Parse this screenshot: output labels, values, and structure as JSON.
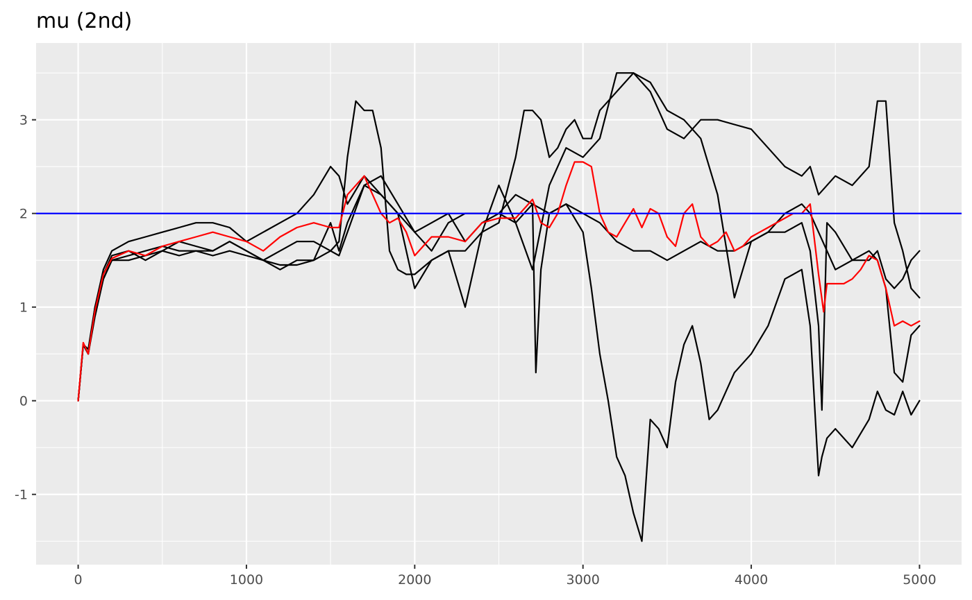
{
  "chart_data": {
    "type": "line",
    "title": "mu (2nd)",
    "xlabel": "",
    "ylabel": "",
    "xlim": [
      -250,
      5250
    ],
    "ylim": [
      -1.75,
      3.82
    ],
    "x_ticks": [
      0,
      1000,
      2000,
      3000,
      4000,
      5000
    ],
    "x_tick_labels": [
      "0",
      "1000",
      "2000",
      "3000",
      "4000",
      "5000"
    ],
    "y_ticks": [
      -1,
      0,
      1,
      2,
      3
    ],
    "y_tick_labels": [
      "-1",
      "0",
      "1",
      "2",
      "3"
    ],
    "grid": true,
    "legend": "none",
    "reference_line": {
      "y": 2,
      "color": "#0000ff"
    },
    "colors": {
      "chain": "#000000",
      "mean": "#ff0000",
      "reference": "#0000ff",
      "panel": "#ebebeb",
      "grid": "#ffffff"
    },
    "series": [
      {
        "color": "#000000",
        "x": [
          0,
          30,
          60,
          100,
          150,
          200,
          300,
          400,
          500,
          600,
          700,
          800,
          900,
          1000,
          1100,
          1200,
          1300,
          1400,
          1500,
          1550,
          1600,
          1650,
          1700,
          1750,
          1800,
          1850,
          1900,
          1950,
          2000,
          2100,
          2200,
          2300,
          2400,
          2500,
          2600,
          2650,
          2700,
          2750,
          2800,
          2850,
          2900,
          2950,
          3000,
          3050,
          3100,
          3200,
          3300,
          3400,
          3500,
          3600,
          3700,
          3800,
          3900,
          4000,
          4100,
          4200,
          4300,
          4350,
          4400,
          4450,
          4500,
          4600,
          4700,
          4750,
          4800,
          4850,
          4900,
          4950,
          5000
        ],
        "y": [
          0,
          0.6,
          0.5,
          1.0,
          1.3,
          1.5,
          1.55,
          1.6,
          1.65,
          1.6,
          1.6,
          1.55,
          1.6,
          1.55,
          1.5,
          1.45,
          1.45,
          1.5,
          1.6,
          1.7,
          2.6,
          3.2,
          3.1,
          3.1,
          2.7,
          1.6,
          1.4,
          1.35,
          1.35,
          1.5,
          1.6,
          1.6,
          1.8,
          1.9,
          2.6,
          3.1,
          3.1,
          3.0,
          2.6,
          2.7,
          2.9,
          3.0,
          2.8,
          2.8,
          3.1,
          3.3,
          3.5,
          3.4,
          3.1,
          3.0,
          2.8,
          2.2,
          1.1,
          1.7,
          1.8,
          2.0,
          2.1,
          2.0,
          1.8,
          1.6,
          1.4,
          1.5,
          1.5,
          1.6,
          1.3,
          1.2,
          1.3,
          1.5,
          1.6
        ]
      },
      {
        "color": "#000000",
        "x": [
          0,
          30,
          60,
          100,
          150,
          200,
          300,
          400,
          500,
          600,
          700,
          800,
          900,
          1000,
          1100,
          1200,
          1300,
          1400,
          1500,
          1550,
          1600,
          1700,
          1800,
          1900,
          2000,
          2100,
          2200,
          2300,
          2400,
          2500,
          2600,
          2700,
          2800,
          2900,
          3000,
          3100,
          3200,
          3300,
          3400,
          3500,
          3600,
          3700,
          3800,
          3900,
          4000,
          4100,
          4200,
          4300,
          4350,
          4400,
          4450,
          4500,
          4600,
          4700,
          4750,
          4800,
          4850,
          4900,
          4950,
          5000
        ],
        "y": [
          0,
          0.6,
          0.55,
          1.0,
          1.4,
          1.6,
          1.7,
          1.75,
          1.8,
          1.85,
          1.9,
          1.9,
          1.85,
          1.7,
          1.8,
          1.9,
          2.0,
          2.2,
          2.5,
          2.4,
          2.1,
          2.4,
          2.2,
          2.0,
          1.2,
          1.5,
          1.6,
          1.0,
          1.8,
          2.3,
          1.9,
          1.4,
          2.3,
          2.7,
          2.6,
          2.8,
          3.5,
          3.5,
          3.3,
          2.9,
          2.8,
          3.0,
          3.0,
          2.95,
          2.9,
          2.7,
          2.5,
          2.4,
          2.5,
          2.2,
          2.3,
          2.4,
          2.3,
          2.5,
          3.2,
          3.2,
          1.9,
          1.6,
          1.2,
          1.1
        ]
      },
      {
        "color": "#000000",
        "x": [
          0,
          30,
          60,
          100,
          150,
          200,
          300,
          400,
          500,
          600,
          700,
          800,
          900,
          1000,
          1100,
          1200,
          1300,
          1400,
          1500,
          1550,
          1600,
          1700,
          1800,
          1900,
          2000,
          2100,
          2200,
          2300,
          2400,
          2500,
          2600,
          2700,
          2800,
          2900,
          3000,
          3050,
          3100,
          3150,
          3200,
          3250,
          3300,
          3350,
          3400,
          3450,
          3500,
          3550,
          3600,
          3650,
          3700,
          3750,
          3800,
          3900,
          4000,
          4100,
          4200,
          4300,
          4350,
          4400,
          4420,
          4450,
          4500,
          4600,
          4700,
          4750,
          4800,
          4850,
          4900,
          4950,
          5000
        ],
        "y": [
          0,
          0.6,
          0.5,
          0.9,
          1.3,
          1.5,
          1.5,
          1.55,
          1.6,
          1.55,
          1.6,
          1.6,
          1.7,
          1.6,
          1.5,
          1.6,
          1.7,
          1.7,
          1.6,
          1.55,
          1.8,
          2.3,
          2.4,
          2.1,
          1.8,
          1.9,
          2.0,
          1.7,
          1.9,
          2.0,
          2.2,
          2.1,
          2.0,
          2.1,
          1.8,
          1.2,
          0.5,
          0.0,
          -0.6,
          -0.8,
          -1.2,
          -1.5,
          -0.2,
          -0.3,
          -0.5,
          0.2,
          0.6,
          0.8,
          0.4,
          -0.2,
          -0.1,
          0.3,
          0.5,
          0.8,
          1.3,
          1.4,
          0.8,
          -0.8,
          -0.6,
          -0.4,
          -0.3,
          -0.5,
          -0.2,
          0.1,
          -0.1,
          -0.15,
          0.1,
          -0.15,
          0.0
        ]
      },
      {
        "color": "#000000",
        "x": [
          0,
          30,
          60,
          100,
          150,
          200,
          300,
          400,
          500,
          600,
          700,
          800,
          900,
          1000,
          1100,
          1200,
          1300,
          1400,
          1500,
          1550,
          1600,
          1700,
          1800,
          1900,
          2000,
          2100,
          2200,
          2300,
          2400,
          2500,
          2600,
          2700,
          2720,
          2750,
          2800,
          2900,
          3000,
          3100,
          3200,
          3300,
          3400,
          3500,
          3600,
          3700,
          3800,
          3900,
          4000,
          4100,
          4200,
          4300,
          4350,
          4400,
          4420,
          4450,
          4500,
          4600,
          4700,
          4750,
          4800,
          4850,
          4900,
          4950,
          5000
        ],
        "y": [
          0,
          0.6,
          0.5,
          0.95,
          1.35,
          1.55,
          1.6,
          1.5,
          1.6,
          1.7,
          1.65,
          1.6,
          1.7,
          1.6,
          1.5,
          1.4,
          1.5,
          1.5,
          1.9,
          1.6,
          1.9,
          2.3,
          2.2,
          2.0,
          1.8,
          1.6,
          1.9,
          2.0,
          2.0,
          2.0,
          1.9,
          2.1,
          0.3,
          1.4,
          2.0,
          2.1,
          2.0,
          1.9,
          1.7,
          1.6,
          1.6,
          1.5,
          1.6,
          1.7,
          1.6,
          1.6,
          1.7,
          1.8,
          1.8,
          1.9,
          1.6,
          0.8,
          -0.1,
          1.9,
          1.8,
          1.5,
          1.6,
          1.5,
          1.2,
          0.3,
          0.2,
          0.7,
          0.8
        ]
      },
      {
        "color": "#ff0000",
        "x": [
          0,
          30,
          60,
          100,
          150,
          200,
          300,
          400,
          500,
          600,
          700,
          800,
          900,
          1000,
          1100,
          1200,
          1300,
          1400,
          1500,
          1550,
          1600,
          1650,
          1700,
          1750,
          1800,
          1850,
          1900,
          1950,
          2000,
          2100,
          2200,
          2300,
          2400,
          2500,
          2600,
          2650,
          2700,
          2750,
          2800,
          2850,
          2900,
          2950,
          3000,
          3050,
          3100,
          3150,
          3200,
          3250,
          3300,
          3350,
          3400,
          3450,
          3500,
          3550,
          3600,
          3650,
          3700,
          3750,
          3800,
          3850,
          3900,
          3950,
          4000,
          4050,
          4100,
          4150,
          4200,
          4250,
          4300,
          4350,
          4400,
          4430,
          4450,
          4500,
          4550,
          4600,
          4650,
          4700,
          4750,
          4800,
          4850,
          4900,
          4950,
          5000
        ],
        "y": [
          0,
          0.62,
          0.5,
          0.96,
          1.35,
          1.52,
          1.6,
          1.55,
          1.65,
          1.7,
          1.75,
          1.8,
          1.75,
          1.7,
          1.6,
          1.75,
          1.85,
          1.9,
          1.85,
          1.85,
          2.2,
          2.3,
          2.4,
          2.2,
          2.0,
          1.9,
          1.95,
          1.8,
          1.55,
          1.75,
          1.75,
          1.7,
          1.9,
          1.95,
          1.95,
          2.05,
          2.15,
          1.9,
          1.85,
          2.0,
          2.3,
          2.55,
          2.55,
          2.5,
          2.0,
          1.8,
          1.75,
          1.9,
          2.05,
          1.85,
          2.05,
          2.0,
          1.75,
          1.65,
          2.0,
          2.1,
          1.75,
          1.65,
          1.7,
          1.8,
          1.6,
          1.65,
          1.75,
          1.8,
          1.85,
          1.9,
          1.95,
          2.0,
          2.0,
          2.1,
          1.35,
          0.95,
          1.25,
          1.25,
          1.25,
          1.3,
          1.4,
          1.55,
          1.5,
          1.2,
          0.8,
          0.85,
          0.8,
          0.85
        ]
      }
    ]
  }
}
